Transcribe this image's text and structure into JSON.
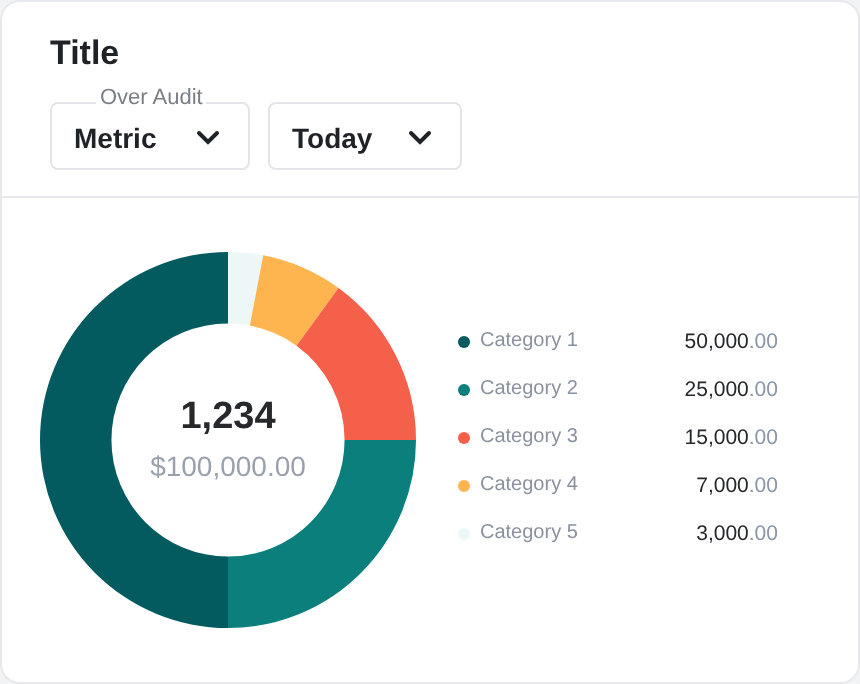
{
  "chart_data": {
    "type": "donut",
    "title": "Title",
    "categories": [
      "Category 1",
      "Category 2",
      "Category 3",
      "Category 4",
      "Category 5"
    ],
    "values": [
      50000,
      25000,
      15000,
      7000,
      3000
    ],
    "colors": [
      "#035a5f",
      "#0b7f7c",
      "#f5604a",
      "#ffb54f",
      "#eef7f7"
    ],
    "value_labels": [
      "50,000.00",
      "25,000.00",
      "15,000.00",
      "7,000.00",
      "3,000.00"
    ],
    "legend": "right",
    "annotations": [
      "Over Audit",
      "Metric",
      "Today",
      "1,234",
      "$100,000.00"
    ]
  }
}
